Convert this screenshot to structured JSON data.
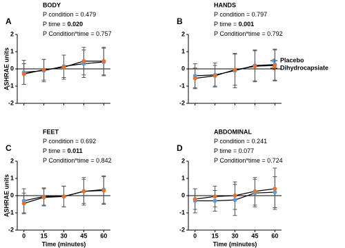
{
  "chart_data": [
    {
      "type": "line",
      "panel": "A",
      "title": "BODY",
      "ylabel": "ASHRAE units",
      "annotations": [
        {
          "text": "P condition = ",
          "value": "0.479"
        },
        {
          "text": "P time = ",
          "value": "0.020",
          "bold": true
        },
        {
          "text": "P Condition*time = ",
          "value": "0.757"
        }
      ],
      "x": [
        0,
        15,
        30,
        45,
        60
      ],
      "xlim": [
        -5,
        65
      ],
      "ylim": [
        -2,
        2
      ],
      "yticks": [
        -2,
        -1,
        0,
        1,
        2
      ],
      "legend": "right",
      "series": [
        {
          "name": "Placebo",
          "color": "#5b9bd5",
          "values": [
            -0.2,
            -0.1,
            0.15,
            0.3,
            0.4
          ],
          "errors": [
            0.7,
            0.65,
            0.65,
            0.8,
            0.8
          ]
        },
        {
          "name": "Dihydrocapsiate",
          "color": "#e8702a",
          "values": [
            -0.3,
            -0.05,
            0.1,
            0.45,
            0.45
          ],
          "errors": [
            0.6,
            0.6,
            0.7,
            0.8,
            0.8
          ]
        }
      ]
    },
    {
      "type": "line",
      "panel": "B",
      "title": "HANDS",
      "annotations": [
        {
          "text": "P condition = ",
          "value": "0.797"
        },
        {
          "text": "P time = ",
          "value": "0.001",
          "bold": true
        },
        {
          "text": "P Condition*time = ",
          "value": "0.792"
        }
      ],
      "x": [
        0,
        15,
        30,
        45,
        60
      ],
      "xlim": [
        -5,
        65
      ],
      "ylim": [
        -2,
        2
      ],
      "yticks": [
        -2,
        -1,
        0,
        1,
        2
      ],
      "series": [
        {
          "name": "Placebo",
          "color": "#5b9bd5",
          "values": [
            -0.4,
            -0.35,
            -0.1,
            0.2,
            0.25
          ],
          "errors": [
            0.7,
            0.7,
            1.0,
            0.9,
            0.9
          ]
        },
        {
          "name": "Dihydrocapsiate",
          "color": "#e8702a",
          "values": [
            -0.55,
            -0.4,
            -0.05,
            0.15,
            0.2
          ],
          "errors": [
            0.6,
            0.6,
            0.9,
            0.9,
            0.9
          ]
        }
      ]
    },
    {
      "type": "line",
      "panel": "C",
      "title": "FEET",
      "ylabel": "ASHRAE units",
      "xlabel": "Time (minutes)",
      "annotations": [
        {
          "text": "P condition = ",
          "value": "0.692"
        },
        {
          "text": "P time = ",
          "value": "0.011",
          "bold": true
        },
        {
          "text": "P Condition*time = ",
          "value": "0.842"
        }
      ],
      "x": [
        0,
        15,
        30,
        45,
        60
      ],
      "xlim": [
        -5,
        65
      ],
      "xticks": [
        0,
        15,
        30,
        45,
        60
      ],
      "ylim": [
        -2,
        2
      ],
      "yticks": [
        -2,
        -1,
        0,
        1,
        2
      ],
      "series": [
        {
          "name": "Placebo",
          "color": "#5b9bd5",
          "values": [
            -0.3,
            -0.05,
            -0.05,
            0.25,
            0.35
          ],
          "errors": [
            0.7,
            0.5,
            0.6,
            0.8,
            0.8
          ]
        },
        {
          "name": "Dihydrocapsiate",
          "color": "#e8702a",
          "values": [
            -0.45,
            -0.1,
            -0.05,
            0.25,
            0.3
          ],
          "errors": [
            0.6,
            0.5,
            0.6,
            0.7,
            0.8
          ]
        }
      ]
    },
    {
      "type": "line",
      "panel": "D",
      "title": "ABDOMINAL",
      "xlabel": "Time (minutes)",
      "annotations": [
        {
          "text": "P condition = ",
          "value": "0.241"
        },
        {
          "text": "P time = ",
          "value": "0.077"
        },
        {
          "text": "P Condition*time = ",
          "value": "0.724"
        }
      ],
      "x": [
        0,
        15,
        30,
        45,
        60
      ],
      "xlim": [
        -5,
        65
      ],
      "xticks": [
        0,
        15,
        30,
        45,
        60
      ],
      "ylim": [
        -2,
        2
      ],
      "yticks": [
        -2,
        -1,
        0,
        1,
        2
      ],
      "series": [
        {
          "name": "Placebo",
          "color": "#5b9bd5",
          "values": [
            -0.3,
            -0.3,
            -0.25,
            0.15,
            0.2
          ],
          "errors": [
            0.7,
            0.6,
            0.9,
            0.8,
            0.9
          ]
        },
        {
          "name": "Dihydrocapsiate",
          "color": "#e8702a",
          "values": [
            -0.2,
            -0.05,
            0.0,
            0.25,
            0.4
          ],
          "errors": [
            0.6,
            0.6,
            0.8,
            0.8,
            1.2
          ]
        }
      ]
    }
  ]
}
